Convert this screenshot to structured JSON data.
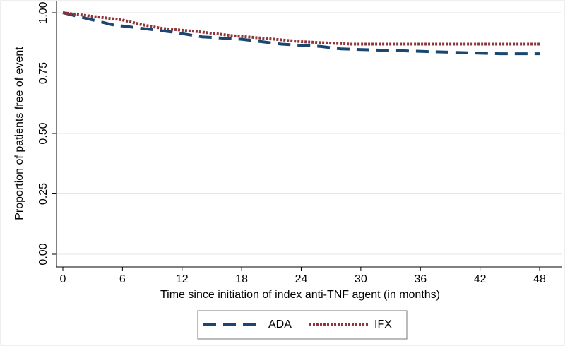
{
  "chart_data": {
    "type": "line",
    "xlabel": "Time since initiation of index anti-TNF agent (in months)",
    "ylabel": "Proportion of patients free of event",
    "xlim": [
      0,
      48
    ],
    "xticks": [
      0,
      6,
      12,
      18,
      24,
      30,
      36,
      42,
      48
    ],
    "ylim": [
      0,
      1
    ],
    "yticks": [
      {
        "value": 0,
        "label": "0.00"
      },
      {
        "value": 0.25,
        "label": "0.25"
      },
      {
        "value": 0.5,
        "label": "0.50"
      },
      {
        "value": 0.75,
        "label": "0.75"
      },
      {
        "value": 1,
        "label": "1.00"
      }
    ],
    "grid": true,
    "legend": "bottom",
    "series": [
      {
        "name": "ADA",
        "color": "#1a476f",
        "dash": "18 10",
        "x": [
          0,
          2,
          5,
          8,
          11,
          14,
          18,
          20,
          22,
          26,
          28,
          44,
          48
        ],
        "values": [
          1.0,
          0.98,
          0.95,
          0.935,
          0.92,
          0.9,
          0.89,
          0.88,
          0.87,
          0.86,
          0.85,
          0.83,
          0.83
        ]
      },
      {
        "name": "IFX",
        "color": "#90353b",
        "dash": "3 2",
        "x": [
          0,
          3,
          6,
          8,
          10,
          14,
          17,
          20,
          24,
          29,
          48
        ],
        "values": [
          1.0,
          0.985,
          0.97,
          0.95,
          0.935,
          0.92,
          0.905,
          0.895,
          0.88,
          0.87,
          0.87
        ]
      }
    ]
  }
}
